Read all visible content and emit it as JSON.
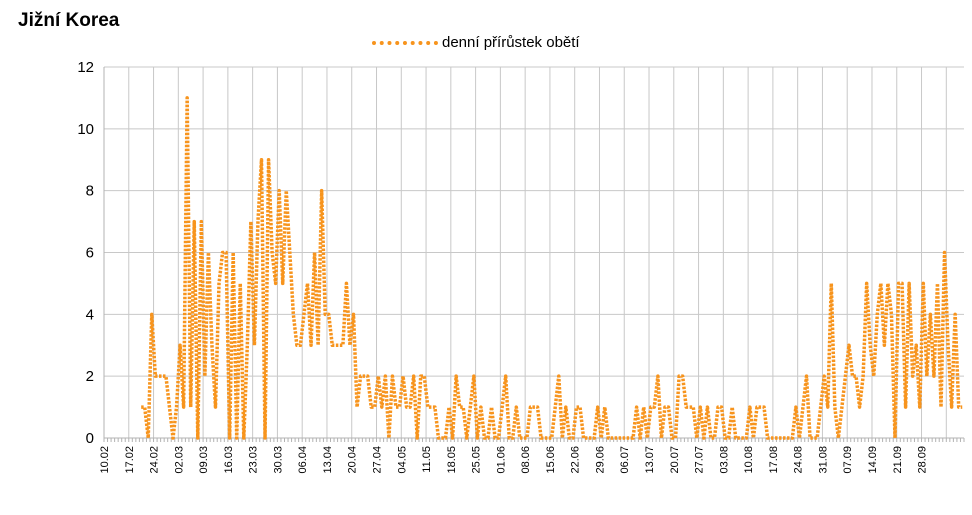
{
  "chart_data": {
    "type": "line",
    "title": "Jižní Korea",
    "xlabel": "",
    "ylabel": "",
    "ylim": [
      0,
      12
    ],
    "yticks": [
      0,
      2,
      4,
      6,
      8,
      10,
      12
    ],
    "grid": true,
    "legend": "top-center",
    "xtick_labels": [
      "10.02",
      "17.02",
      "24.02",
      "02.03",
      "09.03",
      "16.03",
      "23.03",
      "30.03",
      "06.04",
      "13.04",
      "20.04",
      "27.04",
      "04.05",
      "11.05",
      "18.05",
      "25.05",
      "01.06",
      "08.06",
      "15.06",
      "22.06",
      "29.06",
      "06.07",
      "13.07",
      "20.07",
      "27.07",
      "03.08",
      "10.08",
      "17.08",
      "24.08",
      "31.08",
      "07.09",
      "14.09",
      "21.09",
      "28.09"
    ],
    "series": [
      {
        "name": "denní přírůstek obětí",
        "color": "#f7941d",
        "start_date": "2020-02-10",
        "values": [
          null,
          null,
          null,
          null,
          null,
          null,
          null,
          null,
          null,
          null,
          1,
          1,
          0,
          4,
          2,
          2,
          2,
          2,
          1,
          0,
          1,
          3,
          1,
          11,
          1,
          7,
          0,
          7,
          2,
          6,
          3,
          1,
          5,
          6,
          6,
          0,
          6,
          0,
          5,
          0,
          3,
          7,
          3,
          7,
          9,
          0,
          9,
          6,
          5,
          8,
          5,
          8,
          6,
          4,
          3,
          3,
          4,
          5,
          3,
          6,
          3,
          8,
          4,
          4,
          3,
          3,
          3,
          3,
          5,
          3,
          4,
          1,
          2,
          2,
          2,
          1,
          1,
          2,
          1,
          2,
          0,
          2,
          1,
          1,
          2,
          1,
          1,
          2,
          0,
          2,
          2,
          1,
          1,
          1,
          0,
          0,
          0,
          1,
          0,
          2,
          1,
          1,
          0,
          1,
          2,
          0,
          1,
          0,
          0,
          1,
          0,
          0,
          1,
          2,
          0,
          0,
          1,
          0,
          0,
          0,
          1,
          1,
          1,
          0,
          0,
          0,
          0,
          1,
          2,
          0,
          1,
          0,
          0,
          1,
          1,
          0,
          0,
          0,
          0,
          1,
          0,
          1,
          0,
          0,
          0,
          0,
          0,
          0,
          0,
          0,
          1,
          0,
          1,
          0,
          1,
          1,
          2,
          0,
          1,
          1,
          0,
          0,
          2,
          2,
          1,
          1,
          1,
          0,
          1,
          0,
          1,
          0,
          0,
          1,
          1,
          0,
          0,
          1,
          0,
          0,
          0,
          0,
          1,
          0,
          1,
          1,
          1,
          0,
          0,
          0,
          0,
          0,
          0,
          0,
          0,
          1,
          0,
          1,
          2,
          0,
          0,
          0,
          1,
          2,
          1,
          5,
          1,
          0,
          1,
          2,
          3,
          2,
          2,
          1,
          2,
          5,
          3,
          2,
          4,
          5,
          3,
          5,
          4,
          0,
          5,
          5,
          1,
          5,
          2,
          3,
          1,
          5,
          2,
          4,
          2,
          5,
          1,
          6,
          3,
          1,
          4,
          1,
          1
        ]
      }
    ]
  }
}
